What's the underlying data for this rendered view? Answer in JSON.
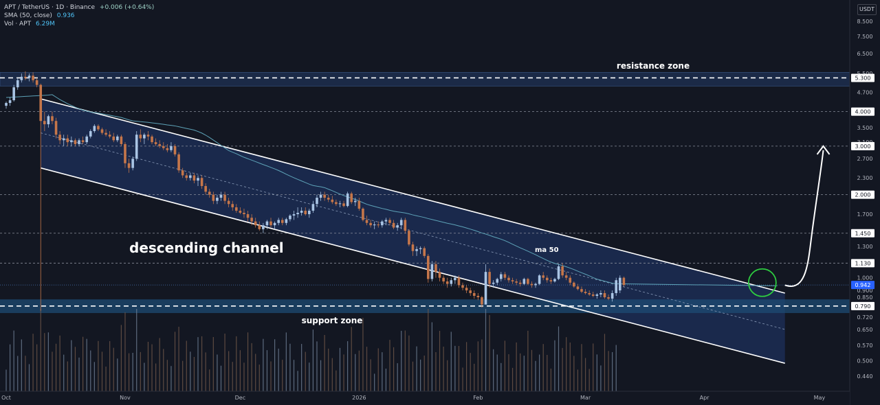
{
  "header": {
    "symbol": "APT / TetherUS · 1D · Binance",
    "change": "+0.006 (+0.64%)",
    "sma_label": "SMA (50, close)",
    "sma_value": "0.936",
    "vol_label": "Vol · APT",
    "vol_value": "6.29M"
  },
  "currency": "USDT",
  "colors": {
    "background": "#131722",
    "up_candle": "#a9c4e4",
    "down_candle": "#c5764a",
    "sma_line": "#5ea3b8",
    "channel_fill": "#1c2d54",
    "support_fill": "#1d4b73",
    "grid_dashed": "#8a8f9c",
    "highlight_circle": "#2ecc40"
  },
  "annotations": {
    "resistance": "resistance zone",
    "support": "support zone",
    "channel": "descending channel",
    "ma": "ma 50"
  },
  "chart_data": {
    "type": "candlestick",
    "y_scale": "log",
    "ylim": [
      0.4,
      10.5
    ],
    "y_ticks": [
      "8.500",
      "7.500",
      "6.500",
      "5.500",
      "4.700",
      "4.000",
      "3.500",
      "3.100",
      "2.700",
      "2.300",
      "2.000",
      "1.700",
      "1.450",
      "1.300",
      "1.130",
      "1.000",
      "0.900",
      "0.850",
      "0.790",
      "0.720",
      "0.650",
      "0.570",
      "0.500",
      "0.440"
    ],
    "x_ticks": [
      {
        "label": "Oct",
        "day": 0
      },
      {
        "label": "Nov",
        "day": 31
      },
      {
        "label": "Dec",
        "day": 61
      },
      {
        "label": "2026",
        "day": 92
      },
      {
        "label": "Feb",
        "day": 123
      },
      {
        "label": "Mar",
        "day": 151
      },
      {
        "label": "Apr",
        "day": 182
      },
      {
        "label": "May",
        "day": 212
      }
    ],
    "horizontal_levels": [
      5.3,
      4.0,
      3.0,
      2.0,
      1.45,
      1.13,
      0.79
    ],
    "price_tags": [
      {
        "label": "5.300",
        "value": 5.3,
        "kind": "level"
      },
      {
        "label": "4.000",
        "value": 4.0,
        "kind": "level"
      },
      {
        "label": "3.000",
        "value": 3.0,
        "kind": "level"
      },
      {
        "label": "2.000",
        "value": 2.0,
        "kind": "level"
      },
      {
        "label": "1.450",
        "value": 1.45,
        "kind": "level"
      },
      {
        "label": "1.130",
        "value": 1.13,
        "kind": "level"
      },
      {
        "label": "0.942",
        "value": 0.942,
        "kind": "current"
      },
      {
        "label": "0.790",
        "value": 0.79,
        "kind": "level"
      }
    ],
    "current_price": 0.942,
    "resistance_zone": [
      4.95,
      5.55
    ],
    "support_zone": [
      0.745,
      0.835
    ],
    "channel": {
      "upper": [
        [
          9,
          4.45
        ],
        [
          203,
          0.88
        ]
      ],
      "lower": [
        [
          9,
          2.5
        ],
        [
          203,
          0.49
        ]
      ],
      "mid": [
        [
          9,
          3.35
        ],
        [
          203,
          0.65
        ]
      ]
    },
    "projection": [
      [
        203,
        0.94
      ],
      [
        209,
        1.4
      ],
      [
        213,
        3.0
      ]
    ],
    "highlight": {
      "day": 198,
      "value": 0.96
    },
    "ohlc": [
      [
        0,
        4.2,
        4.35,
        4.1,
        4.3
      ],
      [
        1,
        4.3,
        4.5,
        4.2,
        4.4
      ],
      [
        2,
        4.4,
        5.0,
        4.35,
        4.9
      ],
      [
        3,
        4.9,
        5.3,
        4.8,
        5.2
      ],
      [
        4,
        5.2,
        5.5,
        5.1,
        5.35
      ],
      [
        5,
        5.35,
        5.6,
        5.2,
        5.3
      ],
      [
        6,
        5.3,
        5.5,
        5.15,
        5.4
      ],
      [
        7,
        5.4,
        5.55,
        5.1,
        5.2
      ],
      [
        8,
        5.2,
        5.3,
        4.9,
        5.0
      ],
      [
        9,
        5.0,
        5.05,
        0.76,
        3.7
      ],
      [
        10,
        3.7,
        4.0,
        3.4,
        3.6
      ],
      [
        11,
        3.6,
        3.9,
        3.5,
        3.85
      ],
      [
        12,
        3.85,
        4.0,
        3.6,
        3.7
      ],
      [
        13,
        3.7,
        3.8,
        3.2,
        3.3
      ],
      [
        14,
        3.3,
        3.4,
        3.05,
        3.15
      ],
      [
        15,
        3.15,
        3.3,
        3.0,
        3.2
      ],
      [
        16,
        3.2,
        3.3,
        3.0,
        3.1
      ],
      [
        17,
        3.1,
        3.25,
        3.0,
        3.15
      ],
      [
        18,
        3.15,
        3.2,
        3.0,
        3.05
      ],
      [
        19,
        3.05,
        3.2,
        3.0,
        3.15
      ],
      [
        20,
        3.15,
        3.25,
        3.05,
        3.1
      ],
      [
        21,
        3.1,
        3.3,
        3.05,
        3.25
      ],
      [
        22,
        3.25,
        3.45,
        3.2,
        3.4
      ],
      [
        23,
        3.4,
        3.6,
        3.35,
        3.55
      ],
      [
        24,
        3.55,
        3.6,
        3.4,
        3.45
      ],
      [
        25,
        3.45,
        3.5,
        3.3,
        3.35
      ],
      [
        26,
        3.35,
        3.45,
        3.25,
        3.3
      ],
      [
        27,
        3.3,
        3.4,
        3.2,
        3.25
      ],
      [
        28,
        3.25,
        3.35,
        3.1,
        3.15
      ],
      [
        29,
        3.15,
        3.3,
        3.1,
        3.25
      ],
      [
        30,
        3.25,
        3.3,
        3.0,
        3.05
      ],
      [
        31,
        3.05,
        3.1,
        2.5,
        2.6
      ],
      [
        32,
        2.6,
        2.7,
        2.4,
        2.5
      ],
      [
        33,
        2.5,
        2.75,
        2.45,
        2.7
      ],
      [
        34,
        2.7,
        3.4,
        2.65,
        3.3
      ],
      [
        35,
        3.3,
        3.45,
        3.1,
        3.2
      ],
      [
        36,
        3.2,
        3.35,
        3.05,
        3.3
      ],
      [
        37,
        3.3,
        3.4,
        3.15,
        3.25
      ],
      [
        38,
        3.25,
        3.3,
        3.05,
        3.1
      ],
      [
        39,
        3.1,
        3.2,
        3.0,
        3.05
      ],
      [
        40,
        3.05,
        3.15,
        2.95,
        3.0
      ],
      [
        41,
        3.0,
        3.1,
        2.9,
        2.95
      ],
      [
        42,
        2.95,
        3.05,
        2.85,
        2.9
      ],
      [
        43,
        2.9,
        3.1,
        2.85,
        3.0
      ],
      [
        44,
        3.0,
        3.05,
        2.75,
        2.8
      ],
      [
        45,
        2.8,
        2.85,
        2.4,
        2.45
      ],
      [
        46,
        2.45,
        2.5,
        2.3,
        2.35
      ],
      [
        47,
        2.35,
        2.4,
        2.25,
        2.3
      ],
      [
        48,
        2.3,
        2.4,
        2.25,
        2.35
      ],
      [
        49,
        2.35,
        2.4,
        2.2,
        2.25
      ],
      [
        50,
        2.25,
        2.35,
        2.15,
        2.3
      ],
      [
        51,
        2.3,
        2.35,
        2.1,
        2.15
      ],
      [
        52,
        2.15,
        2.2,
        2.0,
        2.05
      ],
      [
        53,
        2.05,
        2.1,
        1.95,
        2.0
      ],
      [
        54,
        2.0,
        2.05,
        1.85,
        1.9
      ],
      [
        55,
        1.9,
        2.0,
        1.85,
        1.95
      ],
      [
        56,
        1.95,
        2.05,
        1.9,
        2.0
      ],
      [
        57,
        2.0,
        2.05,
        1.85,
        1.9
      ],
      [
        58,
        1.9,
        1.95,
        1.8,
        1.85
      ],
      [
        59,
        1.85,
        1.9,
        1.75,
        1.8
      ],
      [
        60,
        1.8,
        1.85,
        1.72,
        1.75
      ],
      [
        61,
        1.75,
        1.8,
        1.7,
        1.72
      ],
      [
        62,
        1.72,
        1.78,
        1.65,
        1.7
      ],
      [
        63,
        1.7,
        1.75,
        1.6,
        1.65
      ],
      [
        64,
        1.65,
        1.7,
        1.55,
        1.6
      ],
      [
        65,
        1.6,
        1.65,
        1.52,
        1.55
      ],
      [
        66,
        1.55,
        1.6,
        1.48,
        1.5
      ],
      [
        67,
        1.5,
        1.58,
        1.45,
        1.55
      ],
      [
        68,
        1.55,
        1.62,
        1.5,
        1.6
      ],
      [
        69,
        1.6,
        1.65,
        1.52,
        1.55
      ],
      [
        70,
        1.55,
        1.6,
        1.5,
        1.58
      ],
      [
        71,
        1.58,
        1.65,
        1.55,
        1.62
      ],
      [
        72,
        1.62,
        1.65,
        1.55,
        1.58
      ],
      [
        73,
        1.58,
        1.65,
        1.55,
        1.63
      ],
      [
        74,
        1.63,
        1.7,
        1.6,
        1.68
      ],
      [
        75,
        1.68,
        1.75,
        1.62,
        1.7
      ],
      [
        76,
        1.7,
        1.8,
        1.65,
        1.72
      ],
      [
        77,
        1.72,
        1.8,
        1.68,
        1.75
      ],
      [
        78,
        1.75,
        1.8,
        1.68,
        1.7
      ],
      [
        79,
        1.7,
        1.78,
        1.65,
        1.75
      ],
      [
        80,
        1.75,
        1.9,
        1.72,
        1.85
      ],
      [
        81,
        1.85,
        2.0,
        1.8,
        1.95
      ],
      [
        82,
        1.95,
        2.05,
        1.9,
        2.0
      ],
      [
        83,
        2.0,
        2.05,
        1.9,
        1.95
      ],
      [
        84,
        1.95,
        2.0,
        1.88,
        1.92
      ],
      [
        85,
        1.92,
        1.98,
        1.85,
        1.88
      ],
      [
        86,
        1.88,
        1.92,
        1.82,
        1.85
      ],
      [
        87,
        1.85,
        1.9,
        1.8,
        1.86
      ],
      [
        88,
        1.86,
        1.9,
        1.8,
        1.82
      ],
      [
        89,
        1.82,
        2.05,
        1.8,
        2.02
      ],
      [
        90,
        2.02,
        2.05,
        1.85,
        1.88
      ],
      [
        91,
        1.88,
        1.95,
        1.82,
        1.9
      ],
      [
        92,
        1.9,
        1.95,
        1.75,
        1.78
      ],
      [
        93,
        1.78,
        1.8,
        1.6,
        1.62
      ],
      [
        94,
        1.62,
        1.68,
        1.55,
        1.58
      ],
      [
        95,
        1.58,
        1.62,
        1.52,
        1.55
      ],
      [
        96,
        1.55,
        1.6,
        1.5,
        1.56
      ],
      [
        97,
        1.56,
        1.6,
        1.52,
        1.55
      ],
      [
        98,
        1.55,
        1.62,
        1.52,
        1.6
      ],
      [
        99,
        1.6,
        1.65,
        1.55,
        1.62
      ],
      [
        100,
        1.62,
        1.65,
        1.55,
        1.58
      ],
      [
        101,
        1.58,
        1.62,
        1.5,
        1.52
      ],
      [
        102,
        1.52,
        1.58,
        1.48,
        1.55
      ],
      [
        103,
        1.55,
        1.65,
        1.5,
        1.62
      ],
      [
        104,
        1.62,
        1.65,
        1.45,
        1.48
      ],
      [
        105,
        1.48,
        1.5,
        1.3,
        1.32
      ],
      [
        106,
        1.32,
        1.35,
        1.2,
        1.25
      ],
      [
        107,
        1.25,
        1.3,
        1.2,
        1.27
      ],
      [
        108,
        1.27,
        1.3,
        1.22,
        1.28
      ],
      [
        109,
        1.28,
        1.3,
        1.18,
        1.2
      ],
      [
        110,
        1.2,
        1.22,
        0.96,
        0.99
      ],
      [
        111,
        0.99,
        1.15,
        0.97,
        1.12
      ],
      [
        112,
        1.12,
        1.15,
        1.0,
        1.05
      ],
      [
        113,
        1.05,
        1.08,
        0.97,
        1.0
      ],
      [
        114,
        1.0,
        1.02,
        0.95,
        0.97
      ],
      [
        115,
        0.97,
        1.0,
        0.92,
        0.95
      ],
      [
        116,
        0.95,
        1.0,
        0.93,
        0.98
      ],
      [
        117,
        0.98,
        1.02,
        0.95,
        1.0
      ],
      [
        118,
        1.0,
        1.02,
        0.92,
        0.94
      ],
      [
        119,
        0.94,
        0.96,
        0.9,
        0.92
      ],
      [
        120,
        0.92,
        0.94,
        0.88,
        0.9
      ],
      [
        121,
        0.9,
        0.92,
        0.86,
        0.88
      ],
      [
        122,
        0.88,
        0.9,
        0.84,
        0.86
      ],
      [
        123,
        0.86,
        0.88,
        0.83,
        0.85
      ],
      [
        124,
        0.85,
        0.86,
        0.78,
        0.8
      ],
      [
        125,
        0.8,
        1.12,
        0.8,
        1.05
      ],
      [
        126,
        1.05,
        1.08,
        0.92,
        0.95
      ],
      [
        127,
        0.95,
        0.98,
        0.92,
        0.96
      ],
      [
        128,
        0.96,
        1.0,
        0.94,
        0.99
      ],
      [
        129,
        0.99,
        1.05,
        0.97,
        1.03
      ],
      [
        130,
        1.03,
        1.05,
        0.98,
        1.0
      ],
      [
        131,
        1.0,
        1.02,
        0.96,
        0.98
      ],
      [
        132,
        0.98,
        1.0,
        0.95,
        0.97
      ],
      [
        133,
        0.97,
        0.99,
        0.94,
        0.96
      ],
      [
        134,
        0.96,
        0.98,
        0.93,
        0.95
      ],
      [
        135,
        0.95,
        1.0,
        0.94,
        0.99
      ],
      [
        136,
        0.99,
        1.0,
        0.94,
        0.95
      ],
      [
        137,
        0.95,
        0.97,
        0.92,
        0.94
      ],
      [
        138,
        0.94,
        0.96,
        0.92,
        0.95
      ],
      [
        139,
        0.95,
        1.03,
        0.94,
        1.02
      ],
      [
        140,
        1.02,
        1.05,
        0.98,
        1.0
      ],
      [
        141,
        1.0,
        1.02,
        0.96,
        0.98
      ],
      [
        142,
        0.98,
        1.0,
        0.95,
        0.97
      ],
      [
        143,
        0.97,
        1.0,
        0.96,
        0.99
      ],
      [
        144,
        0.99,
        1.12,
        0.98,
        1.1
      ],
      [
        145,
        1.1,
        1.13,
        1.0,
        1.02
      ],
      [
        146,
        1.02,
        1.05,
        0.98,
        1.0
      ],
      [
        147,
        1.0,
        1.02,
        0.94,
        0.96
      ],
      [
        148,
        0.96,
        0.97,
        0.92,
        0.93
      ],
      [
        149,
        0.93,
        0.95,
        0.9,
        0.91
      ],
      [
        150,
        0.91,
        0.93,
        0.88,
        0.89
      ],
      [
        151,
        0.89,
        0.91,
        0.87,
        0.88
      ],
      [
        152,
        0.88,
        0.9,
        0.86,
        0.87
      ],
      [
        153,
        0.87,
        0.89,
        0.85,
        0.86
      ],
      [
        154,
        0.86,
        0.88,
        0.84,
        0.87
      ],
      [
        155,
        0.87,
        0.9,
        0.85,
        0.88
      ],
      [
        156,
        0.88,
        0.9,
        0.84,
        0.85
      ],
      [
        157,
        0.85,
        0.87,
        0.83,
        0.84
      ],
      [
        158,
        0.84,
        0.9,
        0.82,
        0.88
      ],
      [
        159,
        0.88,
        1.0,
        0.86,
        0.98
      ]
    ]
  }
}
